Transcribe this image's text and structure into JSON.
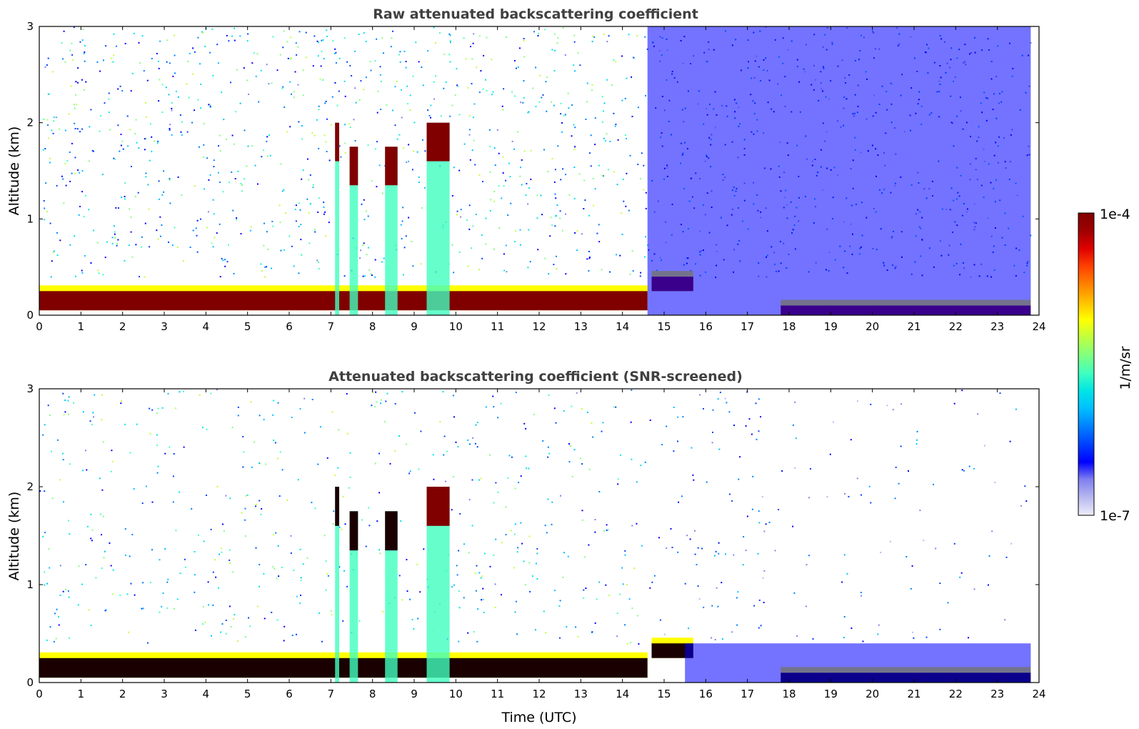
{
  "chart_data": [
    {
      "type": "heatmap",
      "title": "Raw attenuated backscattering coefficient",
      "xlabel": "",
      "ylabel": "Altitude (km)",
      "xlim": [
        0,
        24
      ],
      "ylim": [
        0,
        3
      ],
      "x_ticks": [
        "0",
        "1",
        "2",
        "3",
        "4",
        "5",
        "6",
        "7",
        "8",
        "9",
        "10",
        "11",
        "12",
        "13",
        "14",
        "15",
        "16",
        "17",
        "18",
        "19",
        "20",
        "21",
        "22",
        "23",
        "24"
      ],
      "y_ticks": [
        "0",
        "1",
        "2",
        "3"
      ],
      "colorscale": "jet (log10)",
      "screened": false,
      "features": [
        {
          "kind": "boundary_layer",
          "x": [
            0,
            14.6
          ],
          "top_km": 0.25,
          "base_km": 0.05,
          "value": "1e-4"
        },
        {
          "kind": "aerosol_layer",
          "x": [
            14.7,
            15.7
          ],
          "top_km": 0.4,
          "base_km": 0.25,
          "value": "1e-4"
        },
        {
          "kind": "cloud",
          "x": [
            7.1,
            7.2
          ],
          "top_km": 2.0,
          "base_km": 1.6,
          "value": "1e-4"
        },
        {
          "kind": "cloud",
          "x": [
            7.45,
            7.65
          ],
          "top_km": 1.75,
          "base_km": 1.35,
          "value": "1e-4"
        },
        {
          "kind": "cloud",
          "x": [
            8.3,
            8.6
          ],
          "top_km": 1.75,
          "base_km": 1.35,
          "value": "1e-4"
        },
        {
          "kind": "cloud",
          "x": [
            9.3,
            9.85
          ],
          "top_km": 2.0,
          "base_km": 1.6,
          "value": "1e-4"
        },
        {
          "kind": "surface_layer",
          "x": [
            17.8,
            23.8
          ],
          "top_km": 0.1,
          "base_km": 0.0,
          "value": "1e-4"
        },
        {
          "kind": "noise_region",
          "x": [
            14.6,
            23.8
          ],
          "top_km": 3.0,
          "base_km": 0.0,
          "value": "3e-7"
        }
      ]
    },
    {
      "type": "heatmap",
      "title": "Attenuated backscattering coefficient (SNR-screened)",
      "xlabel": "Time (UTC)",
      "ylabel": "Altitude (km)",
      "xlim": [
        0,
        24
      ],
      "ylim": [
        0,
        3
      ],
      "x_ticks": [
        "0",
        "1",
        "2",
        "3",
        "4",
        "5",
        "6",
        "7",
        "8",
        "9",
        "10",
        "11",
        "12",
        "13",
        "14",
        "15",
        "16",
        "17",
        "18",
        "19",
        "20",
        "21",
        "22",
        "23",
        "24"
      ],
      "y_ticks": [
        "0",
        "1",
        "2",
        "3"
      ],
      "colorscale": "jet (log10)",
      "screened": true,
      "features": [
        {
          "kind": "boundary_layer",
          "x": [
            0,
            14.6
          ],
          "top_km": 0.25,
          "base_km": 0.05,
          "value": ">1e-4"
        },
        {
          "kind": "aerosol_layer",
          "x": [
            14.7,
            15.7
          ],
          "top_km": 0.4,
          "base_km": 0.25,
          "value": ">1e-4"
        },
        {
          "kind": "cloud",
          "x": [
            7.1,
            7.2
          ],
          "top_km": 2.0,
          "base_km": 1.6,
          "value": ">1e-4"
        },
        {
          "kind": "cloud",
          "x": [
            7.45,
            7.65
          ],
          "top_km": 1.75,
          "base_km": 1.35,
          "value": ">1e-4"
        },
        {
          "kind": "cloud",
          "x": [
            8.3,
            8.6
          ],
          "top_km": 1.75,
          "base_km": 1.35,
          "value": ">1e-4"
        },
        {
          "kind": "cloud",
          "x": [
            9.3,
            9.85
          ],
          "top_km": 2.0,
          "base_km": 1.6,
          "value": "1e-4"
        },
        {
          "kind": "surface_layer",
          "x": [
            17.8,
            23.8
          ],
          "top_km": 0.1,
          "base_km": 0.0,
          "value": ">1e-4"
        },
        {
          "kind": "noise_region",
          "x": [
            15.5,
            23.8
          ],
          "top_km": 0.4,
          "base_km": 0.0,
          "value": "3e-7"
        }
      ]
    }
  ],
  "colorbar": {
    "label": "1/m/sr",
    "max_label": "1e-4",
    "min_label": "1e-7",
    "colors": [
      "#ededfa",
      "#b8b8f0",
      "#8080f0",
      "#0000ff",
      "#0040ff",
      "#0080ff",
      "#00bfff",
      "#00e5e5",
      "#40ffbf",
      "#80ff80",
      "#bfff40",
      "#ffff00",
      "#ffbf00",
      "#ff8000",
      "#ff4000",
      "#e00000",
      "#a00000",
      "#800000"
    ]
  }
}
